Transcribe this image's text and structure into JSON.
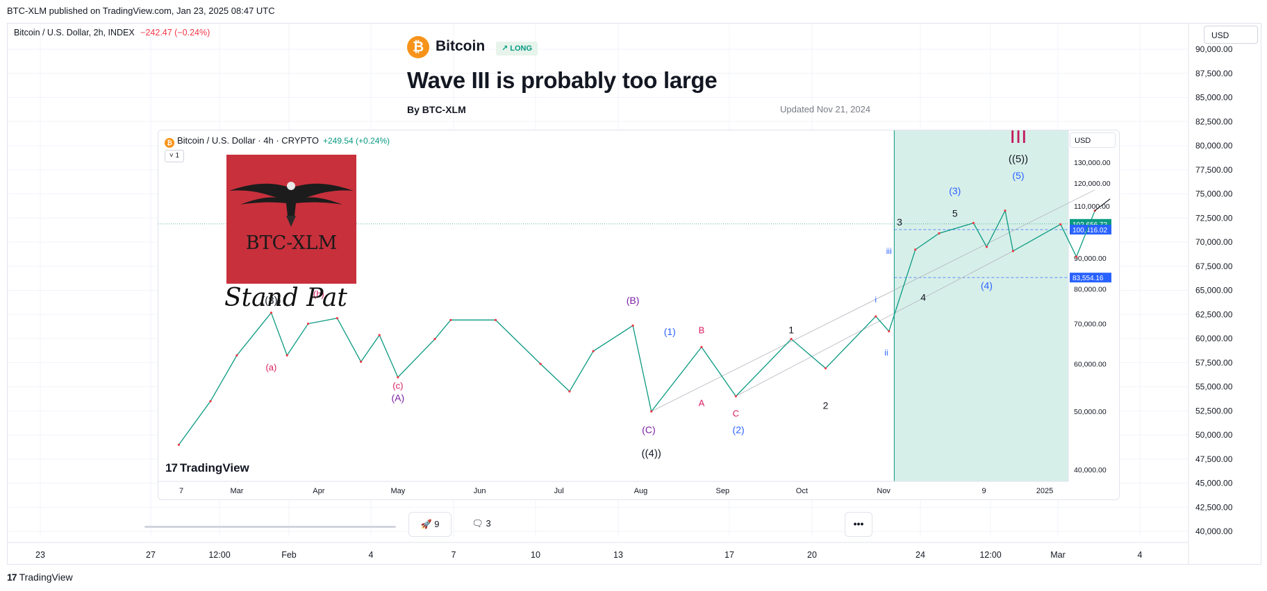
{
  "publication": {
    "text": "BTC-XLM published on TradingView.com, Jan 23, 2025 08:47 UTC"
  },
  "main_chart": {
    "legend": "Bitcoin / U.S. Dollar, 2h, INDEX",
    "legend_change": "−242.47 (−0.24%)",
    "currency": "USD",
    "y_ticks": [
      "90,000.00",
      "87,500.00",
      "85,000.00",
      "82,500.00",
      "80,000.00",
      "77,500.00",
      "75,000.00",
      "72,500.00",
      "70,000.00",
      "67,500.00",
      "65,000.00",
      "62,500.00",
      "60,000.00",
      "57,500.00",
      "55,000.00",
      "52,500.00",
      "50,000.00",
      "47,500.00",
      "45,000.00",
      "42,500.00",
      "40,000.00"
    ],
    "x_ticks": [
      "23",
      "27",
      "12:00",
      "Feb",
      "4",
      "7",
      "10",
      "13",
      "17",
      "20",
      "24",
      "12:00",
      "Mar",
      "4"
    ]
  },
  "article": {
    "symbol": "Bitcoin",
    "symbol_glyph": "₿",
    "direction": "↗ LONG",
    "title": "Wave III is probably too large",
    "byline": "By BTC-XLM",
    "updated": "Updated Nov 21, 2024",
    "boosts": "9",
    "comments": "3",
    "more": "•••"
  },
  "inner_chart": {
    "legend": "Bitcoin / U.S. Dollar · 4h · CRYPTO",
    "legend_glyph": "₿",
    "legend_change": "+249.54 (+0.24%)",
    "collapse": "˅ 1",
    "currency": "USD",
    "y_ticks": [
      "130,000.00",
      "120,000.00",
      "110,000.00",
      "90,000.00",
      "80,000.00",
      "70,000.00",
      "60,000.00",
      "50,000.00",
      "40,000.00"
    ],
    "x_ticks": [
      "7",
      "Mar",
      "Apr",
      "May",
      "Jun",
      "Jul",
      "Aug",
      "Sep",
      "Oct",
      "Nov",
      "9",
      "2025"
    ],
    "price_labels": [
      {
        "text": "102,656.72",
        "color": "#089981"
      },
      {
        "text": "100,416.02",
        "color": "#2962ff"
      },
      {
        "text": "83,554.16",
        "color": "#2962ff"
      }
    ],
    "logo_text": "BTC-XLM",
    "caption": "Stand Pat",
    "watermark": "TradingView",
    "watermark_mark": "17"
  },
  "chart_data": {
    "type": "line",
    "title": "Wave III is probably too large",
    "symbol": "Bitcoin / U.S. Dollar · 4h · CRYPTO",
    "ylim": [
      40000,
      130000
    ],
    "series": [
      {
        "x": [
          "2024-02-08",
          "2024-02-20",
          "2024-03-01",
          "2024-03-14",
          "2024-03-20",
          "2024-03-28",
          "2024-04-08",
          "2024-04-17",
          "2024-04-24",
          "2024-05-01",
          "2024-05-15",
          "2024-05-21",
          "2024-06-07",
          "2024-06-24",
          "2024-07-05",
          "2024-07-14",
          "2024-07-29",
          "2024-08-05",
          "2024-08-24",
          "2024-09-06",
          "2024-09-27",
          "2024-10-10",
          "2024-10-29",
          "2024-11-03",
          "2024-11-13",
          "2024-11-22",
          "2024-12-05",
          "2024-12-10",
          "2024-12-17",
          "2024-12-20",
          "2025-01-07",
          "2025-01-13",
          "2025-01-20"
        ],
        "y": [
          44000,
          52000,
          62000,
          73000,
          62000,
          70000,
          71500,
          60500,
          67000,
          57000,
          66000,
          71000,
          71000,
          60000,
          54000,
          63000,
          69500,
          50000,
          64000,
          53000,
          66000,
          59000,
          72000,
          68000,
          93000,
          99000,
          103000,
          94000,
          108000,
          92500,
          102500,
          90500,
          108000
        ]
      }
    ],
    "wave_labels": [
      "((3))",
      "((4))",
      "((5))",
      "III",
      "(A)",
      "(B)",
      "(C)",
      "(1)",
      "(2)",
      "(3)",
      "(4)",
      "(5)",
      "1",
      "2",
      "3",
      "4",
      "5",
      "A",
      "B",
      "C",
      "i",
      "ii",
      "iii",
      "(a)",
      "(b)",
      "(c)"
    ],
    "levels": [
      102656.72,
      100416.02,
      83554.16
    ],
    "highlight_start": "2024-11-05"
  }
}
